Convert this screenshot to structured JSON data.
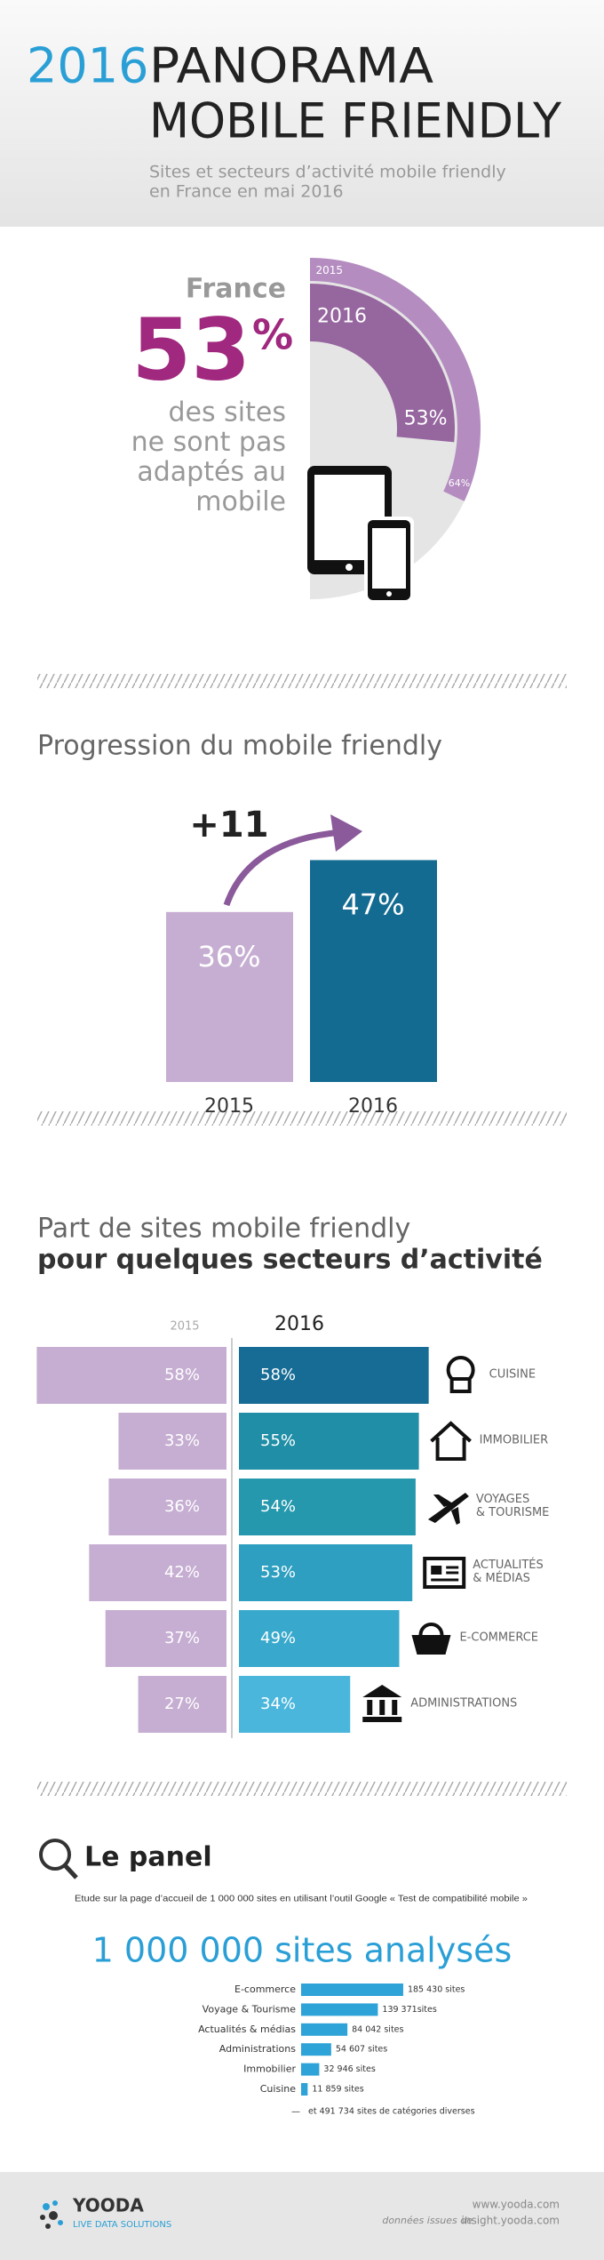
{
  "header": {
    "year": "2016",
    "title_line1": "PANORAMA",
    "title_line2": "MOBILE FRIENDLY",
    "subtitle_line1": "Sites et secteurs d’activité mobile friendly",
    "subtitle_line2": "en France en mai 2016"
  },
  "chart_data": [
    {
      "type": "donut",
      "title": "France",
      "highlight_number": "53",
      "highlight_unit": "%",
      "description_lines": [
        "des sites",
        "ne sont pas",
        "adaptés au",
        "mobile"
      ],
      "ylim": [
        0,
        100
      ],
      "series": [
        {
          "name": "2015",
          "color": "#b48cc0",
          "values": [
            64
          ],
          "value_labels": [
            "64%"
          ]
        },
        {
          "name": "2016",
          "color": "#96669f",
          "values": [
            53
          ],
          "value_labels": [
            "53%"
          ]
        }
      ]
    },
    {
      "type": "bar",
      "title": "Progression du mobile friendly",
      "categories": [
        "2015",
        "2016"
      ],
      "values": [
        36,
        47
      ],
      "value_labels": [
        "36%",
        "47%"
      ],
      "colors": [
        "#c6aed2",
        "#146b92"
      ],
      "annotation": "+11",
      "ylim": [
        0,
        50
      ]
    },
    {
      "type": "diverging_bar",
      "title_line1": "Part de sites mobile friendly",
      "title_line2": "pour quelques secteurs d’activité",
      "xlim": [
        0,
        60
      ],
      "categories": [
        "CUISINE",
        "IMMOBILIER",
        "VOYAGES\n& TOURISME",
        "ACTUALITÉS\n& MÉDIAS",
        "E-COMMERCE",
        "ADMINISTRATIONS"
      ],
      "series": [
        {
          "name": "2015",
          "color": "#c6aed2",
          "values": [
            58,
            33,
            36,
            42,
            37,
            27
          ],
          "value_labels": [
            "58%",
            "33%",
            "36%",
            "42%",
            "37%",
            "27%"
          ]
        },
        {
          "name": "2016",
          "colors": [
            "#176c95",
            "#1f8ea6",
            "#2598ad",
            "#2e9fc1",
            "#38a9cc",
            "#4ab6dc"
          ],
          "values": [
            58,
            55,
            54,
            53,
            49,
            34
          ],
          "value_labels": [
            "58%",
            "55%",
            "54%",
            "53%",
            "49%",
            "34%"
          ]
        }
      ]
    },
    {
      "type": "hbar",
      "heading": "Le panel",
      "description": "Etude sur la page d’accueil de 1 000 000 sites en utilisant l’outil Google « Test de compatibilité mobile »",
      "title": "1 000 000 sites analysés",
      "color": "#2ea3d8",
      "xlim": [
        0,
        200000
      ],
      "categories": [
        "E-commerce",
        "Voyage & Tourisme",
        "Actualités & médias",
        "Administrations",
        "Immobilier",
        "Cuisine"
      ],
      "values": [
        185430,
        139371,
        84042,
        54607,
        32946,
        11859
      ],
      "value_labels": [
        "185 430 sites",
        "139 371sites",
        "84 042 sites",
        "54 607 sites",
        "32 946  sites",
        "11 859 sites"
      ],
      "footnote_dash": "—",
      "footnote": "et 491 734 sites de catégories diverses"
    }
  ],
  "footer": {
    "brand": "YOODA",
    "tagline": "LIVE DATA SOLUTIONS",
    "url": "www.yooda.com",
    "source_prefix": "données issues de",
    "source_url": "insight.yooda.com"
  }
}
